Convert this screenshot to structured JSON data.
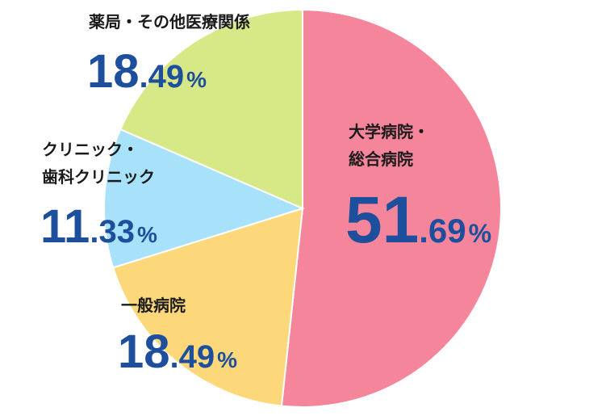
{
  "chart_data": {
    "type": "pie",
    "categories": [
      [
        "大学病院・",
        "総合病院"
      ],
      [
        "一般病院"
      ],
      [
        "クリニック・",
        "歯科クリニック"
      ],
      [
        "薬局・その他医療関係"
      ]
    ],
    "values": [
      51.69,
      18.49,
      11.33,
      18.49
    ],
    "value_labels": [
      "51.69%",
      "18.49%",
      "11.33%",
      "18.49%"
    ],
    "colors": [
      "#f5859b",
      "#fdd87b",
      "#a7e1fa",
      "#d7e886"
    ]
  }
}
